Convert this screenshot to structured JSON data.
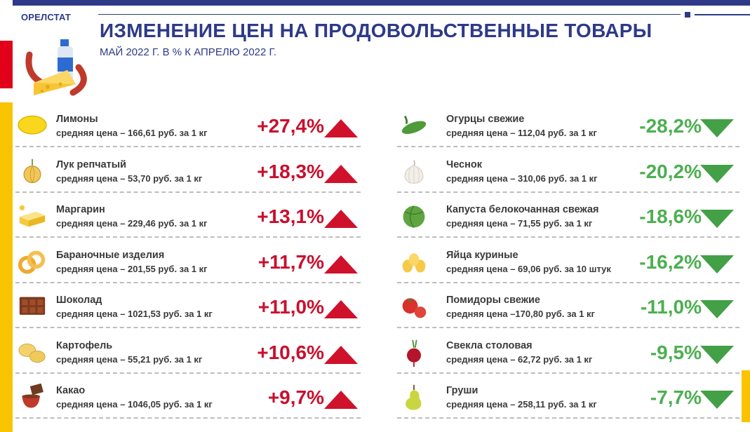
{
  "header": {
    "brand": "ОРЕЛСТАТ",
    "title": "ИЗМЕНЕНИЕ ЦЕН НА ПРОДОВОЛЬСТВЕННЫЕ ТОВАРЫ",
    "subtitle": "МАЙ 2022 Г. В % К АПРЕЛЮ 2022 Г."
  },
  "colors": {
    "brand_blue": "#2e3a87",
    "increase_red": "#c8102e",
    "decrease_green": "#4caf50",
    "accent_yellow": "#f9c300"
  },
  "increases": [
    {
      "name": "Лимоны",
      "price": "средняя цена – 166,61 руб. за 1 кг",
      "change": "+27,4%",
      "icon": "lemon-icon"
    },
    {
      "name": "Лук репчатый",
      "price": "средняя цена – 53,70 руб. за 1 кг",
      "change": "+18,3%",
      "icon": "onion-icon"
    },
    {
      "name": "Маргарин",
      "price": "средняя цена – 229,46 руб. за 1 кг",
      "change": "+13,1%",
      "icon": "margarine-icon"
    },
    {
      "name": "Бараночные изделия",
      "price": "средняя цена – 201,55 руб. за 1 кг",
      "change": "+11,7%",
      "icon": "bagel-icon"
    },
    {
      "name": "Шоколад",
      "price": "средняя цена – 1021,53 руб. за 1 кг",
      "change": "+11,0%",
      "icon": "chocolate-icon"
    },
    {
      "name": "Картофель",
      "price": "средняя цена – 55,21 руб. за 1 кг",
      "change": "+10,6%",
      "icon": "potato-icon"
    },
    {
      "name": "Какао",
      "price": "средняя цена – 1046,05 руб. за 1 кг",
      "change": "+9,7%",
      "icon": "cocoa-icon"
    }
  ],
  "decreases": [
    {
      "name": "Огурцы свежие",
      "price": "средняя цена – 112,04 руб. за 1 кг",
      "change": "-28,2%",
      "icon": "cucumber-icon"
    },
    {
      "name": "Чеснок",
      "price": "средняя цена – 310,06 руб. за 1 кг",
      "change": "-20,2%",
      "icon": "garlic-icon"
    },
    {
      "name": "Капуста белокочанная свежая",
      "price": "средняя цена – 71,55 руб. за 1 кг",
      "change": "-18,6%",
      "icon": "cabbage-icon"
    },
    {
      "name": "Яйца куриные",
      "price": "средняя цена – 69,06 руб. за 10 штук",
      "change": "-16,2%",
      "icon": "eggs-icon"
    },
    {
      "name": "Помидоры свежие",
      "price": "средняя цена –170,80 руб. за 1 кг",
      "change": "-11,0%",
      "icon": "tomato-icon"
    },
    {
      "name": "Свекла столовая",
      "price": "средняя цена – 62,72 руб. за 1 кг",
      "change": "-9,5%",
      "icon": "beet-icon"
    },
    {
      "name": "Груши",
      "price": "средняя цена – 258,11 руб. за 1 кг",
      "change": "-7,7%",
      "icon": "pear-icon"
    }
  ]
}
